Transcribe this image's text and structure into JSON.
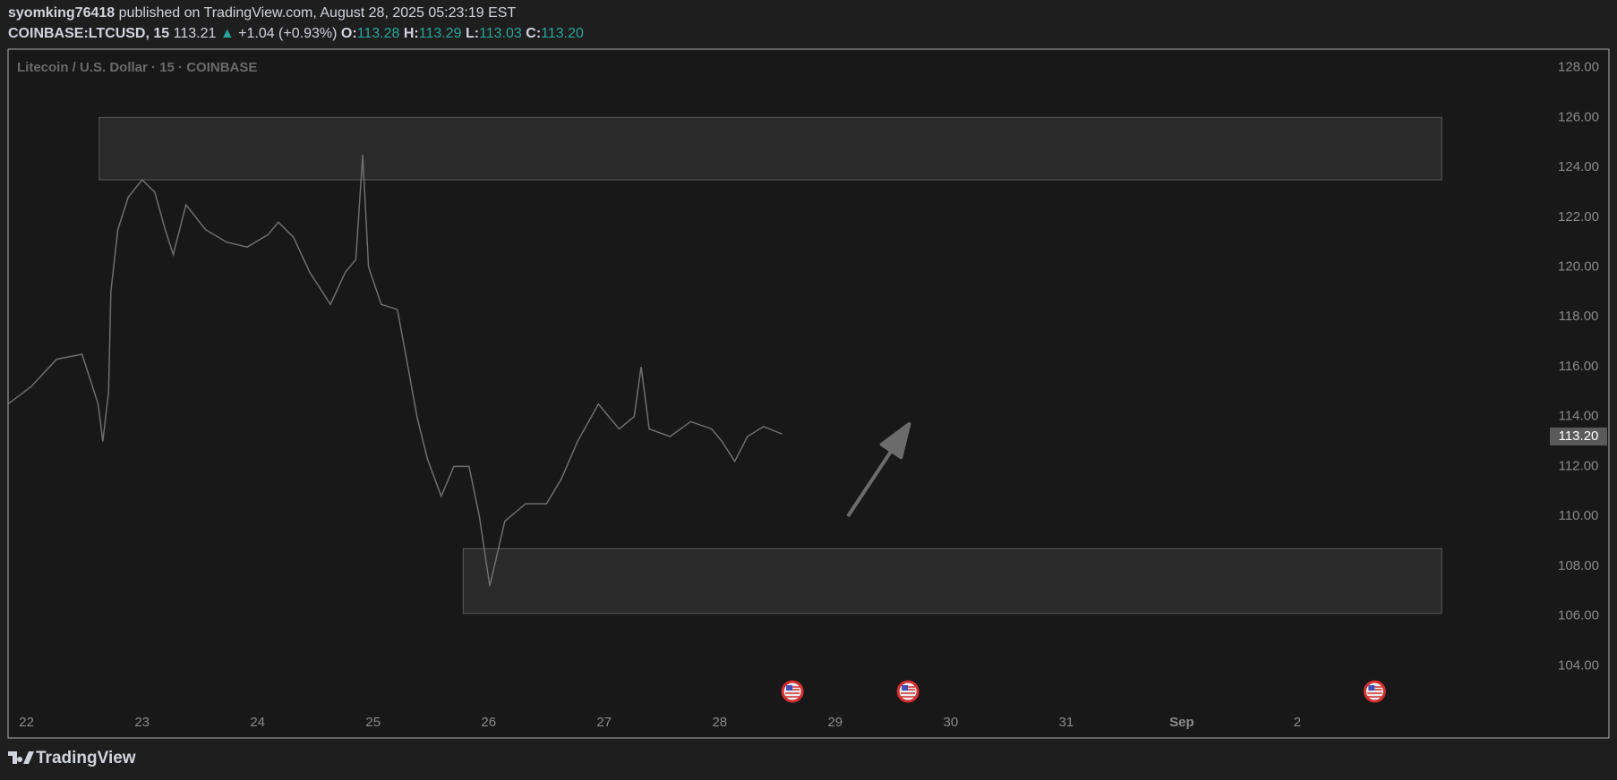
{
  "header": {
    "user": "syomking76418",
    "published": "published on TradingView.com, August 28, 2025 05:23:19 EST",
    "symbol": "COINBASE:LTCUSD, 15",
    "last": "113.21",
    "arrow": "▲",
    "change": "+1.04 (+0.93%)",
    "o_label": "O:",
    "o": "113.28",
    "h_label": "H:",
    "h": "113.29",
    "l_label": "L:",
    "l": "113.03",
    "c_label": "C:",
    "c": "113.20"
  },
  "chart_data": {
    "type": "line",
    "title": "Litecoin / U.S. Dollar · 15 · COINBASE",
    "color": "#6e6e6e",
    "x": [
      21.84,
      22.04,
      22.26,
      22.48,
      22.62,
      22.66,
      22.71,
      22.73,
      22.79,
      22.88,
      23.0,
      23.11,
      23.2,
      23.27,
      23.38,
      23.55,
      23.73,
      23.91,
      24.09,
      24.18,
      24.31,
      24.45,
      24.63,
      24.76,
      24.85,
      24.91,
      24.96,
      25.07,
      25.21,
      25.29,
      25.38,
      25.47,
      25.59,
      25.7,
      25.83,
      25.92,
      26.01,
      26.14,
      26.32,
      26.5,
      26.63,
      26.77,
      26.95,
      27.13,
      27.26,
      27.32,
      27.39,
      27.57,
      27.75,
      27.93,
      28.02,
      28.13,
      28.24,
      28.38,
      28.54
    ],
    "values": [
      114.5,
      115.2,
      116.3,
      116.5,
      114.5,
      113,
      115,
      119,
      121.5,
      122.8,
      123.5,
      123,
      121.5,
      120.5,
      122.5,
      121.5,
      121,
      120.8,
      121.3,
      121.8,
      121.2,
      119.8,
      118.5,
      119.8,
      120.3,
      124.5,
      120,
      118.5,
      118.3,
      116.3,
      114,
      112.3,
      110.8,
      112,
      112,
      110,
      107.2,
      109.8,
      110.5,
      110.5,
      111.5,
      113,
      114.5,
      113.5,
      114,
      116,
      113.5,
      113.2,
      113.8,
      113.5,
      113,
      112.2,
      113.2,
      113.6,
      113.3
    ],
    "last_price": {
      "value": 113.2,
      "label": "113.20"
    },
    "zones": [
      {
        "x": [
          22.63,
          34.25
        ],
        "y": [
          123.5,
          126
        ]
      },
      {
        "x": [
          25.78,
          34.25
        ],
        "y": [
          106.1,
          108.7
        ]
      }
    ],
    "arrow": {
      "x": [
        29.11,
        29.64
      ],
      "y": [
        110.0,
        113.7
      ]
    },
    "events": [
      28.63,
      29.63,
      33.67
    ],
    "xlim": [
      21.84,
      35.07
    ],
    "xticks": [
      22,
      23,
      24,
      25,
      26,
      27,
      28,
      29,
      30,
      31,
      {
        "value": 32,
        "label": "Sep"
      },
      {
        "value": 33,
        "label": "2"
      }
    ],
    "ylim": [
      102.18,
      128.74
    ],
    "yticks": [
      {
        "value": 104,
        "label": "104.00"
      },
      {
        "value": 106,
        "label": "106.00"
      },
      {
        "value": 108,
        "label": "108.00"
      },
      {
        "value": 110,
        "label": "110.00"
      },
      {
        "value": 112,
        "label": "112.00"
      },
      {
        "value": 114,
        "label": "114.00"
      },
      {
        "value": 116,
        "label": "116.00"
      },
      {
        "value": 118,
        "label": "118.00"
      },
      {
        "value": 120,
        "label": "120.00"
      },
      {
        "value": 122,
        "label": "122.00"
      },
      {
        "value": 124,
        "label": "124.00"
      },
      {
        "value": 126,
        "label": "126.00"
      },
      {
        "value": 128,
        "label": "128.00"
      }
    ]
  },
  "footer": {
    "brand": "TradingView"
  }
}
